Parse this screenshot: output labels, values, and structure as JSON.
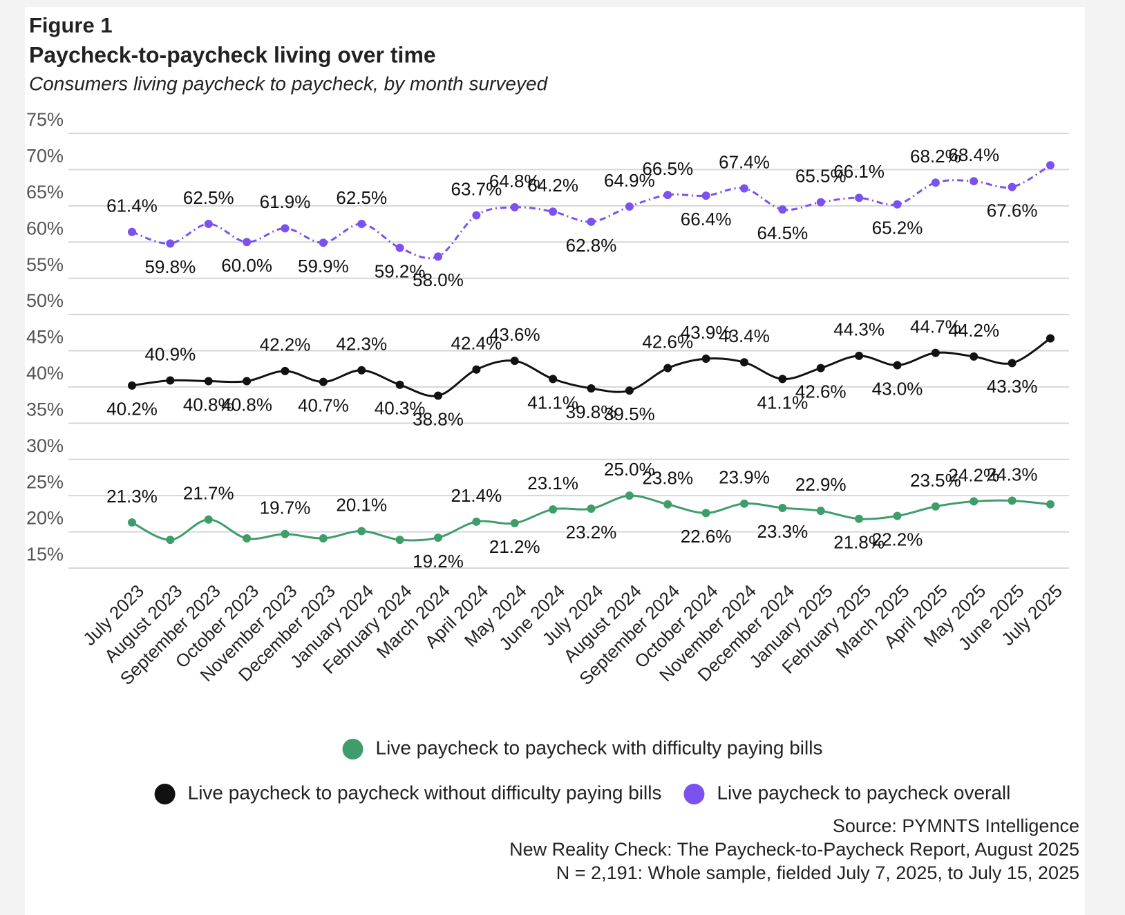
{
  "chart_data": {
    "type": "line",
    "figure_label": "Figure 1",
    "title": "Paycheck-to-paycheck living over time",
    "subtitle": "Consumers living paycheck to paycheck, by month surveyed",
    "categories": [
      "July 2023",
      "August 2023",
      "September 2023",
      "October 2023",
      "November 2023",
      "December 2023",
      "January 2024",
      "February 2024",
      "March 2024",
      "April 2024",
      "May 2024",
      "June 2024",
      "July 2024",
      "August 2024",
      "September 2024",
      "October 2024",
      "November 2024",
      "December 2024",
      "January 2025",
      "February 2025",
      "March 2025",
      "April 2025",
      "May 2025",
      "June 2025",
      "July 2025"
    ],
    "ylim": [
      15,
      75
    ],
    "yticks": [
      {
        "value": 15,
        "label": "15%"
      },
      {
        "value": 20,
        "label": "20%"
      },
      {
        "value": 25,
        "label": "25%"
      },
      {
        "value": 30,
        "label": "30%"
      },
      {
        "value": 35,
        "label": "35%"
      },
      {
        "value": 40,
        "label": "40%"
      },
      {
        "value": 45,
        "label": "45%"
      },
      {
        "value": 50,
        "label": "50%"
      },
      {
        "value": 55,
        "label": "55%"
      },
      {
        "value": 60,
        "label": "60%"
      },
      {
        "value": 65,
        "label": "65%"
      },
      {
        "value": 70,
        "label": "70%"
      },
      {
        "value": 75,
        "label": "75%"
      }
    ],
    "grid": true,
    "series": [
      {
        "name": "Live paycheck to paycheck with difficulty paying bills",
        "color": "#3f9d6c",
        "dashed": false,
        "values": [
          21.3,
          18.9,
          21.7,
          19.1,
          19.7,
          19.1,
          20.1,
          18.9,
          19.2,
          21.4,
          21.2,
          23.1,
          23.2,
          25.0,
          23.8,
          22.6,
          23.9,
          23.3,
          22.9,
          21.8,
          22.2,
          23.5,
          24.2,
          24.3,
          23.8
        ],
        "value_labels": [
          "21.3%",
          null,
          "21.7%",
          null,
          "19.7%",
          null,
          "20.1%",
          null,
          "19.2%",
          "21.4%",
          "21.2%",
          "23.1%",
          "23.2%",
          "25.0%",
          "23.8%",
          "22.6%",
          "23.9%",
          "23.3%",
          "22.9%",
          "21.8%",
          "22.2%",
          "23.5%",
          "24.2%",
          "24.3%",
          null
        ]
      },
      {
        "name": "Live paycheck to paycheck without difficulty paying bills",
        "color": "#111111",
        "dashed": false,
        "values": [
          40.2,
          40.9,
          40.8,
          40.8,
          42.2,
          40.7,
          42.3,
          40.3,
          38.8,
          42.4,
          43.6,
          41.1,
          39.8,
          39.5,
          42.6,
          43.9,
          43.4,
          41.1,
          42.6,
          44.3,
          43.0,
          44.7,
          44.2,
          43.3,
          46.7
        ],
        "value_labels": [
          "40.2%",
          "40.9%",
          "40.8%",
          "40.8%",
          "42.2%",
          "40.7%",
          "42.3%",
          "40.3%",
          "38.8%",
          "42.4%",
          "43.6%",
          "41.1%",
          "39.8%",
          "39.5%",
          "42.6%",
          "43.9%",
          "43.4%",
          "41.1%",
          "42.6%",
          "44.3%",
          "43.0%",
          "44.7%",
          "44.2%",
          "43.3%",
          null
        ]
      },
      {
        "name": "Live paycheck to paycheck overall",
        "color": "#7b52ef",
        "dashed": true,
        "values": [
          61.4,
          59.8,
          62.5,
          60.0,
          61.9,
          59.9,
          62.5,
          59.2,
          58.0,
          63.7,
          64.8,
          64.2,
          62.8,
          64.9,
          66.5,
          66.4,
          67.4,
          64.5,
          65.5,
          66.1,
          65.2,
          68.2,
          68.4,
          67.6,
          70.6
        ],
        "value_labels": [
          "61.4%",
          "59.8%",
          "62.5%",
          "60.0%",
          "61.9%",
          "59.9%",
          "62.5%",
          "59.2%",
          "58.0%",
          "63.7%",
          "64.8%",
          "64.2%",
          "62.8%",
          "64.9%",
          "66.5%",
          "66.4%",
          "67.4%",
          "64.5%",
          "65.5%",
          "66.1%",
          "65.2%",
          "68.2%",
          "68.4%",
          "67.6%",
          null
        ]
      }
    ],
    "notes": [
      "Source: PYMNTS Intelligence",
      "New Reality Check: The Paycheck-to-Paycheck Report, August 2025",
      "N = 2,191: Whole sample, fielded July 7, 2025, to July 15, 2025"
    ]
  }
}
